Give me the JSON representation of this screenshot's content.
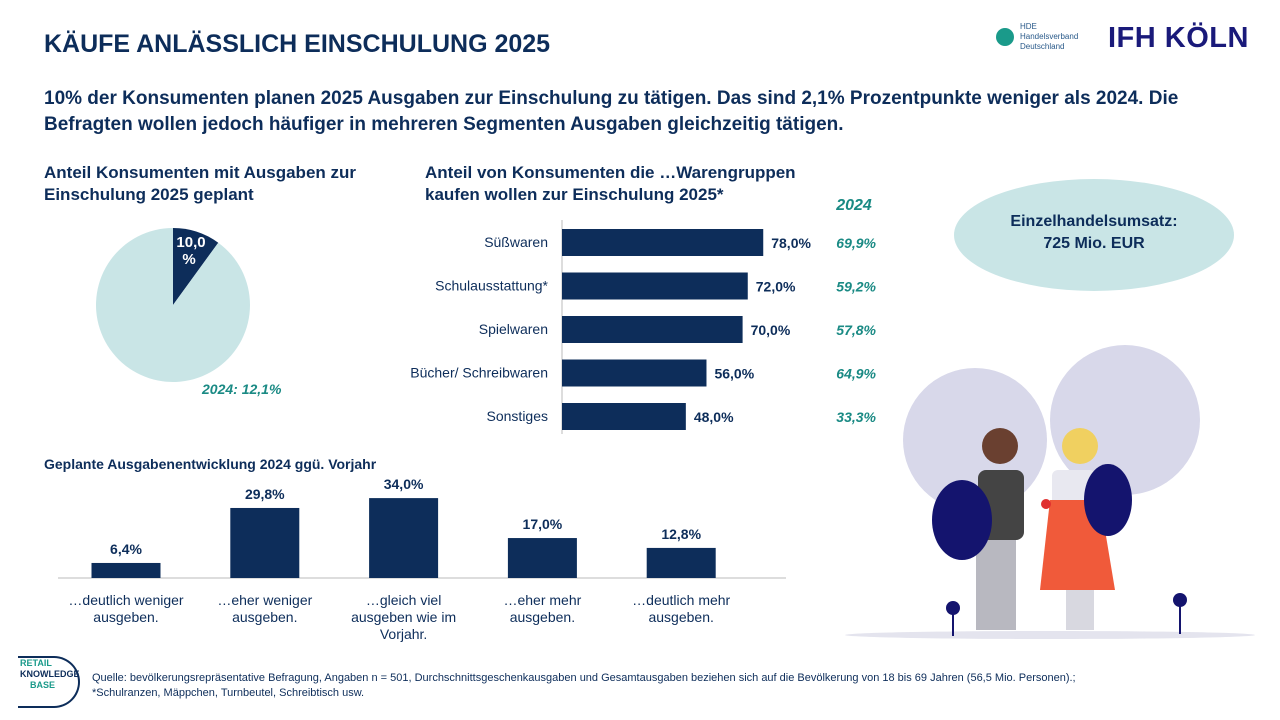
{
  "header": {
    "title": "KÄUFE ANLÄSSLICH EINSCHULUNG 2025",
    "subtitle": "10% der Konsumenten planen 2025 Ausgaben zur Einschulung zu tätigen. Das sind 2,1% Prozentpunkte weniger als 2024. Die Befragten wollen jedoch häufiger in mehreren Segmenten Ausgaben gleichzeitig tätigen.",
    "logos": {
      "hde": "HDE Handelsverband Deutschland",
      "ifh": "IFH KÖLN",
      "rkb": "RETAIL KNOWLEDGE BASE"
    }
  },
  "colors": {
    "navy": "#0d2d5a",
    "light": "#c9e5e6",
    "teal": "#1a8a84"
  },
  "revenue": {
    "label": "Einzelhandelsumsatz:",
    "value": "725 Mio. EUR"
  },
  "chart_data": [
    {
      "type": "pie",
      "title": "Anteil Konsumenten mit Ausgaben zur Einschulung 2025 geplant",
      "values": [
        10.0,
        90.0
      ],
      "data_label": "10,0 %",
      "annotation": "2024: 12,1%"
    },
    {
      "type": "bar",
      "orientation": "horizontal",
      "title": "Anteil von Konsumenten die …Warengruppen kaufen wollen zur Einschulung 2025*",
      "categories": [
        "Süßwaren",
        "Schulausstattung*",
        "Spielwaren",
        "Bücher/ Schreibwaren",
        "Sonstiges"
      ],
      "values": [
        78.0,
        72.0,
        70.0,
        56.0,
        48.0
      ],
      "labels": [
        "78,0%",
        "72,0%",
        "70,0%",
        "56,0%",
        "48,0%"
      ],
      "comparison": {
        "header": "2024",
        "labels": [
          "69,9%",
          "59,2%",
          "57,8%",
          "64,9%",
          "33,3%"
        ]
      }
    },
    {
      "type": "bar",
      "title": "Geplante Ausgabenentwicklung 2024 ggü. Vorjahr",
      "categories": [
        "…deutlich weniger ausgeben.",
        "…eher weniger ausgeben.",
        "…gleich viel ausgeben wie im Vorjahr.",
        "…eher mehr ausgeben.",
        "…deutlich mehr ausgeben."
      ],
      "values": [
        6.4,
        29.8,
        34.0,
        17.0,
        12.8
      ],
      "labels": [
        "6,4%",
        "29,8%",
        "34,0%",
        "17,0%",
        "12,8%"
      ]
    }
  ],
  "footer": {
    "source": "Quelle: bevölkerungsrepräsentative Befragung, Angaben n = 501, Durchschnittsgeschenkausgaben und Gesamtausgaben beziehen sich auf die Bevölkerung von 18 bis 69 Jahren (56,5 Mio. Personen).;",
    "note": "*Schulranzen, Mäppchen, Turnbeutel, Schreibtisch usw."
  }
}
